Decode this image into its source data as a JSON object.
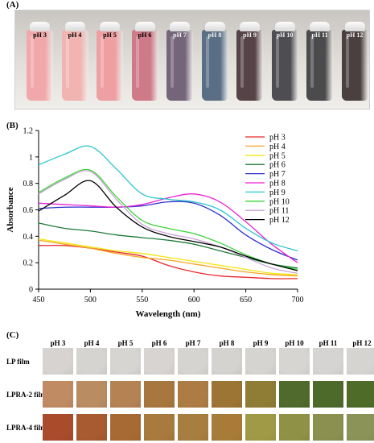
{
  "panel_labels": {
    "a": "(A)",
    "b": "(B)",
    "c": "(C)"
  },
  "panel_a": {
    "vials": [
      {
        "label": "pH 3",
        "color": "#f0a8aa"
      },
      {
        "label": "pH 4",
        "color": "#f2b4b0"
      },
      {
        "label": "pH 5",
        "color": "#ee9fa2"
      },
      {
        "label": "pH 6",
        "color": "#cf7a88"
      },
      {
        "label": "pH 7",
        "color": "#74657a"
      },
      {
        "label": "pH 8",
        "color": "#5a6f85"
      },
      {
        "label": "pH 9",
        "color": "#564348"
      },
      {
        "label": "pH 10",
        "color": "#4e4d52"
      },
      {
        "label": "pH 11",
        "color": "#4b4a4c"
      },
      {
        "label": "pH 12",
        "color": "#4a4040"
      }
    ]
  },
  "chart_data": {
    "type": "line",
    "xlabel": "Wavelength (nm)",
    "ylabel": "Absorbance",
    "xlim": [
      450,
      700
    ],
    "ylim": [
      0,
      1.2
    ],
    "xticks": [
      "450",
      "500",
      "550",
      "600",
      "650",
      "700"
    ],
    "yticks": [
      "0",
      "0.2",
      "0.4",
      "0.6",
      "0.8",
      "1",
      "1.2"
    ],
    "legend_position": "right",
    "x": [
      450,
      475,
      500,
      525,
      550,
      575,
      600,
      625,
      650,
      675,
      700
    ],
    "series": [
      {
        "name": "pH 3",
        "color": "#e8262c",
        "values": [
          0.33,
          0.33,
          0.31,
          0.28,
          0.25,
          0.18,
          0.13,
          0.1,
          0.09,
          0.08,
          0.08
        ]
      },
      {
        "name": "pH 4",
        "color": "#f5a623",
        "values": [
          0.37,
          0.34,
          0.31,
          0.27,
          0.24,
          0.22,
          0.19,
          0.16,
          0.13,
          0.11,
          0.1
        ]
      },
      {
        "name": "pH 5",
        "color": "#f2e60e",
        "values": [
          0.38,
          0.35,
          0.32,
          0.29,
          0.27,
          0.24,
          0.21,
          0.18,
          0.15,
          0.12,
          0.11
        ]
      },
      {
        "name": "pH 6",
        "color": "#1f7a3a",
        "values": [
          0.5,
          0.46,
          0.44,
          0.41,
          0.39,
          0.37,
          0.34,
          0.29,
          0.24,
          0.19,
          0.16
        ]
      },
      {
        "name": "pH 7",
        "color": "#2e2ecc",
        "values": [
          0.61,
          0.62,
          0.62,
          0.62,
          0.63,
          0.66,
          0.65,
          0.56,
          0.41,
          0.3,
          0.22
        ]
      },
      {
        "name": "pH 8",
        "color": "#ea22d6",
        "values": [
          0.65,
          0.64,
          0.63,
          0.62,
          0.64,
          0.69,
          0.72,
          0.66,
          0.51,
          0.34,
          0.2
        ]
      },
      {
        "name": "pH 9",
        "color": "#2cc6cc",
        "values": [
          0.94,
          1.02,
          1.08,
          0.91,
          0.72,
          0.68,
          0.66,
          0.6,
          0.46,
          0.35,
          0.29
        ]
      },
      {
        "name": "pH 10",
        "color": "#3bd43b",
        "values": [
          0.73,
          0.84,
          0.9,
          0.7,
          0.52,
          0.46,
          0.42,
          0.35,
          0.26,
          0.19,
          0.15
        ]
      },
      {
        "name": "pH 11",
        "color": "#c9a3d8",
        "values": [
          0.72,
          0.83,
          0.89,
          0.68,
          0.49,
          0.42,
          0.38,
          0.32,
          0.24,
          0.16,
          0.12
        ]
      },
      {
        "name": "pH 12",
        "color": "#000000",
        "values": [
          0.59,
          0.71,
          0.82,
          0.62,
          0.47,
          0.4,
          0.36,
          0.32,
          0.25,
          0.19,
          0.14
        ]
      }
    ]
  },
  "panel_c": {
    "headers": [
      "pH 3",
      "pH 4",
      "pH 5",
      "pH 6",
      "pH 7",
      "pH 8",
      "pH 9",
      "pH 10",
      "pH 11",
      "pH 12"
    ],
    "rows": [
      {
        "label": "LP film",
        "colors": [
          "#d6d3d0",
          "#d6d4d1",
          "#d7d5d2",
          "#d7d4d1",
          "#d6d4d1",
          "#d5d3d0",
          "#d6d4d1",
          "#d7d5d2",
          "#d6d4d2",
          "#d5d4d1"
        ]
      },
      {
        "label": "LPRA-2 film",
        "colors": [
          "#c08a63",
          "#b98c62",
          "#b58254",
          "#a8763f",
          "#ac7c44",
          "#9c7433",
          "#8f7c35",
          "#4f6a2c",
          "#4d6a2a",
          "#4e6c28"
        ]
      },
      {
        "label": "LPRA-4 film",
        "colors": [
          "#a84c2c",
          "#a85a30",
          "#a86a34",
          "#a87a3e",
          "#a87d40",
          "#a87c38",
          "#a09a46",
          "#8f9246",
          "#8b9050",
          "#8c9358"
        ]
      }
    ]
  }
}
